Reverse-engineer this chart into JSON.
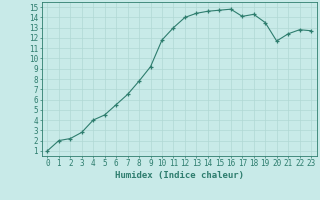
{
  "x": [
    0,
    1,
    2,
    3,
    4,
    5,
    6,
    7,
    8,
    9,
    10,
    11,
    12,
    13,
    14,
    15,
    16,
    17,
    18,
    19,
    20,
    21,
    22,
    23
  ],
  "y": [
    1,
    2,
    2.2,
    2.8,
    4,
    4.5,
    5.5,
    6.5,
    7.8,
    9.2,
    11.8,
    13.0,
    14.0,
    14.4,
    14.6,
    14.7,
    14.8,
    14.1,
    14.3,
    13.5,
    11.7,
    12.4,
    12.8,
    12.7
  ],
  "line_color": "#2e7d6e",
  "marker": "+",
  "bg_color": "#c8eae8",
  "grid_color": "#b0d8d4",
  "xlabel": "Humidex (Indice chaleur)",
  "xlim": [
    -0.5,
    23.5
  ],
  "ylim": [
    0.5,
    15.5
  ],
  "yticks": [
    1,
    2,
    3,
    4,
    5,
    6,
    7,
    8,
    9,
    10,
    11,
    12,
    13,
    14,
    15
  ],
  "xticks": [
    0,
    1,
    2,
    3,
    4,
    5,
    6,
    7,
    8,
    9,
    10,
    11,
    12,
    13,
    14,
    15,
    16,
    17,
    18,
    19,
    20,
    21,
    22,
    23
  ],
  "tick_color": "#2e7d6e",
  "label_fontsize": 6.5,
  "tick_fontsize": 5.5
}
